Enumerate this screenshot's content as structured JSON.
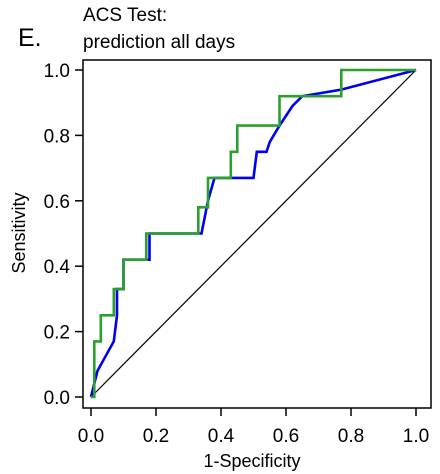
{
  "chart_data": {
    "type": "line",
    "panel_label": "E.",
    "title": [
      "ACS Test:",
      "prediction all days"
    ],
    "xlabel": "1-Specificity",
    "ylabel": "Sensitivity",
    "xlim": [
      0,
      1
    ],
    "ylim": [
      0,
      1
    ],
    "xticks": [
      0.0,
      0.2,
      0.4,
      0.6,
      0.8,
      1.0
    ],
    "xtick_labels": [
      "0.0",
      "0.2",
      "0.4",
      "0.6",
      "0.8",
      "1.0"
    ],
    "yticks": [
      0.0,
      0.2,
      0.4,
      0.6,
      0.8,
      1.0
    ],
    "ytick_labels": [
      "0.0",
      "0.2",
      "0.4",
      "0.6",
      "0.8",
      "1.0"
    ],
    "grid": false,
    "legend": "none",
    "series": [
      {
        "color": "#000000",
        "x": [
          0.0,
          1.0
        ],
        "y": [
          0.0,
          1.0
        ]
      },
      {
        "color": "#0000ee",
        "x": [
          0.0,
          0.02,
          0.07,
          0.08,
          0.08,
          0.1,
          0.1,
          0.18,
          0.18,
          0.34,
          0.36,
          0.38,
          0.38,
          0.5,
          0.51,
          0.54,
          0.55,
          0.58,
          0.62,
          0.65,
          0.77,
          1.0
        ],
        "y": [
          0.0,
          0.08,
          0.17,
          0.25,
          0.33,
          0.33,
          0.42,
          0.42,
          0.5,
          0.5,
          0.6,
          0.67,
          0.67,
          0.67,
          0.75,
          0.75,
          0.78,
          0.83,
          0.89,
          0.92,
          0.94,
          1.0
        ]
      },
      {
        "color": "#2ca02c",
        "x": [
          0.0,
          0.01,
          0.01,
          0.03,
          0.03,
          0.07,
          0.07,
          0.1,
          0.1,
          0.17,
          0.17,
          0.33,
          0.33,
          0.36,
          0.36,
          0.4,
          0.4,
          0.43,
          0.43,
          0.45,
          0.45,
          0.58,
          0.58,
          0.77,
          0.77,
          1.0
        ],
        "y": [
          0.0,
          0.0,
          0.17,
          0.17,
          0.25,
          0.25,
          0.33,
          0.33,
          0.42,
          0.42,
          0.5,
          0.5,
          0.58,
          0.58,
          0.67,
          0.67,
          0.67,
          0.67,
          0.75,
          0.75,
          0.83,
          0.83,
          0.92,
          0.92,
          1.0,
          1.0
        ]
      }
    ]
  }
}
